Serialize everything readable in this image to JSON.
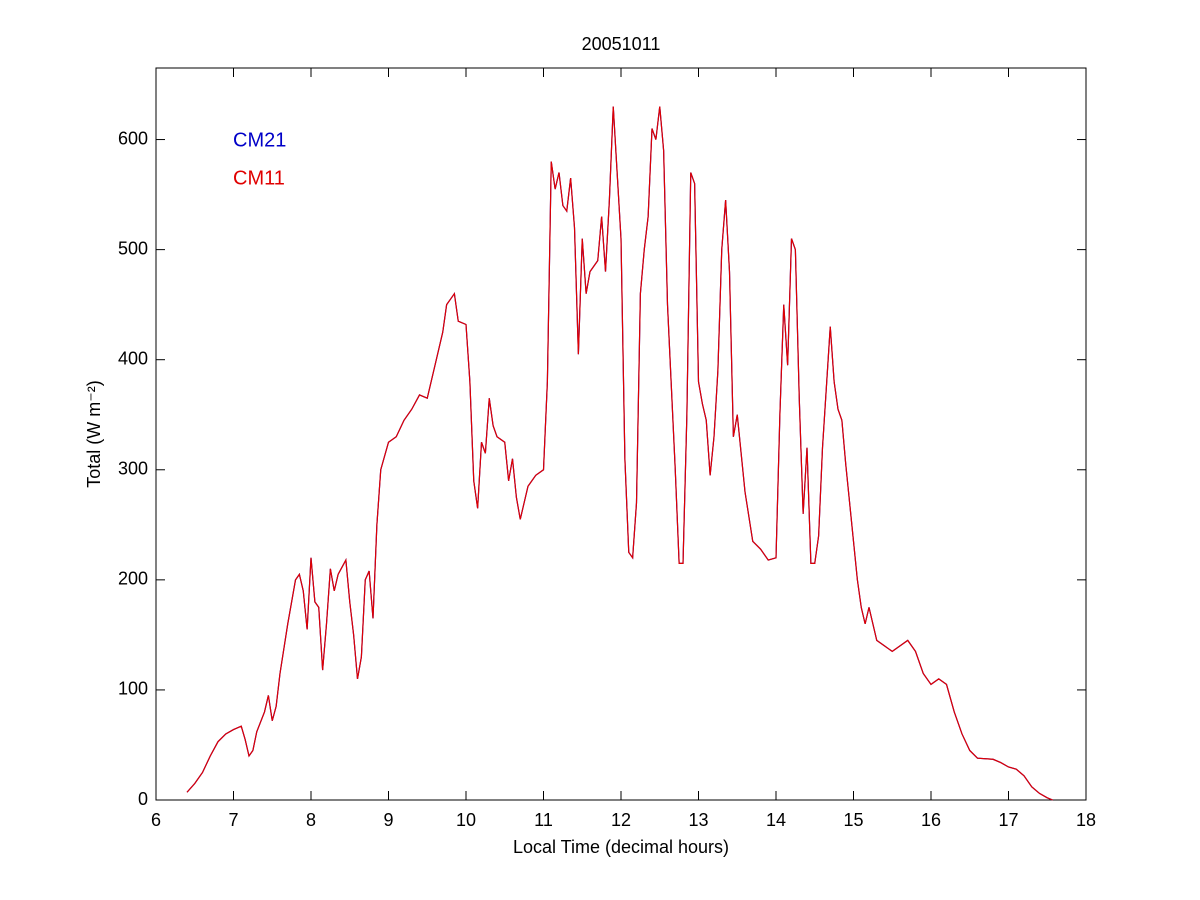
{
  "chart_data": {
    "type": "line",
    "title": "20051011",
    "xlabel": "Local Time (decimal hours)",
    "ylabel": "Total (W m⁻²)",
    "xlim": [
      6,
      18
    ],
    "xticks": [
      6,
      7,
      8,
      9,
      10,
      11,
      12,
      13,
      14,
      15,
      16,
      17,
      18
    ],
    "ylim": [
      0,
      665
    ],
    "yticks": [
      0,
      100,
      200,
      300,
      400,
      500,
      600
    ],
    "legend": "upper left",
    "grid": false,
    "x": [
      6.4,
      6.5,
      6.6,
      6.7,
      6.8,
      6.9,
      7.0,
      7.1,
      7.15,
      7.2,
      7.25,
      7.3,
      7.4,
      7.45,
      7.5,
      7.55,
      7.6,
      7.7,
      7.8,
      7.85,
      7.9,
      7.95,
      8.0,
      8.05,
      8.1,
      8.15,
      8.2,
      8.25,
      8.3,
      8.35,
      8.45,
      8.5,
      8.55,
      8.6,
      8.65,
      8.7,
      8.75,
      8.8,
      8.85,
      8.9,
      9.0,
      9.1,
      9.2,
      9.3,
      9.4,
      9.5,
      9.6,
      9.7,
      9.75,
      9.8,
      9.85,
      9.9,
      10.0,
      10.05,
      10.1,
      10.15,
      10.2,
      10.25,
      10.3,
      10.35,
      10.4,
      10.5,
      10.55,
      10.6,
      10.65,
      10.7,
      10.8,
      10.9,
      11.0,
      11.05,
      11.1,
      11.15,
      11.2,
      11.25,
      11.3,
      11.35,
      11.4,
      11.45,
      11.5,
      11.55,
      11.6,
      11.7,
      11.75,
      11.8,
      11.85,
      11.9,
      11.95,
      12.0,
      12.05,
      12.1,
      12.15,
      12.2,
      12.25,
      12.3,
      12.35,
      12.4,
      12.45,
      12.5,
      12.55,
      12.6,
      12.7,
      12.75,
      12.8,
      12.85,
      12.9,
      12.95,
      13.0,
      13.05,
      13.1,
      13.15,
      13.2,
      13.25,
      13.3,
      13.35,
      13.4,
      13.45,
      13.5,
      13.6,
      13.7,
      13.8,
      13.9,
      14.0,
      14.05,
      14.1,
      14.15,
      14.2,
      14.25,
      14.3,
      14.35,
      14.4,
      14.45,
      14.5,
      14.55,
      14.6,
      14.7,
      14.75,
      14.8,
      14.85,
      14.9,
      15.0,
      15.05,
      15.1,
      15.15,
      15.2,
      15.3,
      15.4,
      15.5,
      15.6,
      15.7,
      15.8,
      15.9,
      16.0,
      16.1,
      16.2,
      16.3,
      16.4,
      16.5,
      16.6,
      16.8,
      16.9,
      17.0,
      17.1,
      17.2,
      17.3,
      17.4,
      17.5,
      17.57
    ],
    "series": [
      {
        "name": "CM21",
        "color": "#0000c8",
        "values": [
          7,
          15,
          25,
          40,
          53,
          60,
          64,
          67,
          55,
          40,
          45,
          62,
          80,
          95,
          72,
          85,
          115,
          160,
          200,
          205,
          190,
          155,
          220,
          180,
          175,
          118,
          160,
          210,
          190,
          205,
          218,
          180,
          150,
          110,
          130,
          200,
          208,
          165,
          250,
          300,
          325,
          330,
          345,
          355,
          368,
          365,
          395,
          425,
          450,
          455,
          460,
          435,
          432,
          380,
          290,
          265,
          325,
          315,
          365,
          340,
          330,
          325,
          290,
          310,
          275,
          255,
          285,
          295,
          300,
          380,
          580,
          555,
          570,
          540,
          535,
          565,
          520,
          405,
          510,
          460,
          480,
          490,
          530,
          480,
          545,
          630,
          570,
          510,
          310,
          225,
          220,
          270,
          460,
          500,
          530,
          610,
          600,
          630,
          590,
          450,
          300,
          215,
          215,
          350,
          570,
          560,
          380,
          360,
          345,
          295,
          330,
          390,
          500,
          545,
          480,
          330,
          350,
          280,
          235,
          228,
          218,
          220,
          350,
          450,
          395,
          510,
          500,
          365,
          260,
          320,
          215,
          215,
          240,
          320,
          430,
          380,
          355,
          345,
          305,
          235,
          200,
          175,
          160,
          175,
          145,
          140,
          135,
          140,
          145,
          135,
          115,
          105,
          110,
          105,
          80,
          60,
          45,
          38,
          37,
          34,
          30,
          28,
          22,
          12,
          6,
          2,
          0
        ]
      },
      {
        "name": "CM11",
        "color": "#e00000",
        "values": [
          7,
          15,
          25,
          40,
          53,
          60,
          64,
          67,
          55,
          40,
          45,
          62,
          80,
          95,
          72,
          85,
          115,
          160,
          200,
          205,
          190,
          155,
          220,
          180,
          175,
          118,
          160,
          210,
          190,
          205,
          218,
          180,
          150,
          110,
          130,
          200,
          208,
          165,
          250,
          300,
          325,
          330,
          345,
          355,
          368,
          365,
          395,
          425,
          450,
          455,
          460,
          435,
          432,
          380,
          290,
          265,
          325,
          315,
          365,
          340,
          330,
          325,
          290,
          310,
          275,
          255,
          285,
          295,
          300,
          380,
          580,
          555,
          570,
          540,
          535,
          565,
          520,
          405,
          510,
          460,
          480,
          490,
          530,
          480,
          545,
          630,
          570,
          510,
          310,
          225,
          220,
          270,
          460,
          500,
          530,
          610,
          600,
          630,
          590,
          450,
          300,
          215,
          215,
          350,
          570,
          560,
          380,
          360,
          345,
          295,
          330,
          390,
          500,
          545,
          480,
          330,
          350,
          280,
          235,
          228,
          218,
          220,
          350,
          450,
          395,
          510,
          500,
          365,
          260,
          320,
          215,
          215,
          240,
          320,
          430,
          380,
          355,
          345,
          305,
          235,
          200,
          175,
          160,
          175,
          145,
          140,
          135,
          140,
          145,
          135,
          115,
          105,
          110,
          105,
          80,
          60,
          45,
          38,
          37,
          34,
          30,
          28,
          22,
          12,
          6,
          2,
          0
        ]
      }
    ]
  }
}
